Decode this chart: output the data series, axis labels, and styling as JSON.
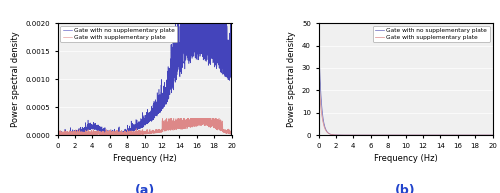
{
  "panel_a": {
    "xlim": [
      0,
      20
    ],
    "ylim": [
      0,
      0.002
    ],
    "yticks": [
      0,
      0.0005,
      0.001,
      0.0015,
      0.002
    ],
    "xticks": [
      0,
      2,
      4,
      6,
      8,
      10,
      12,
      14,
      16,
      18,
      20
    ],
    "xlabel": "Frequency (Hz)",
    "ylabel": "Power spectral density",
    "label_a": "(a)",
    "legend": [
      "Gate with no supplementary plate",
      "Gate with supplementary plate"
    ],
    "color_blue": "#4444bb",
    "color_pink": "#dd8888"
  },
  "panel_b": {
    "xlim": [
      0,
      20
    ],
    "ylim": [
      0,
      50
    ],
    "yticks": [
      0,
      10,
      20,
      30,
      40,
      50
    ],
    "xticks": [
      0,
      2,
      4,
      6,
      8,
      10,
      12,
      14,
      16,
      18,
      20
    ],
    "xlabel": "Frequency (Hz)",
    "ylabel": "Power spectral density",
    "label_b": "(b)",
    "legend": [
      "Gate with no supplementary plate",
      "Gate with supplementary plate"
    ],
    "color_blue": "#6666bb",
    "color_pink": "#dd8888"
  },
  "bg_color": "#f0f0f0",
  "fig_bg": "#ffffff"
}
